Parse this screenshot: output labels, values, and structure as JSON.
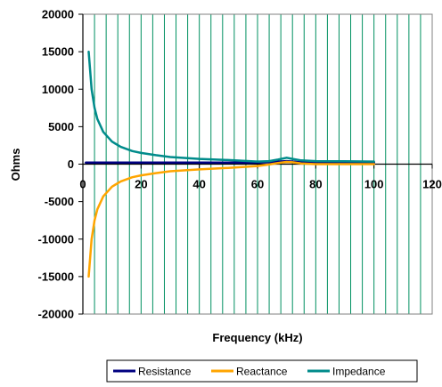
{
  "chart_data": {
    "type": "line",
    "title": "",
    "xlabel": "Frequency (kHz)",
    "ylabel": "Ohms",
    "xlim": [
      0,
      120
    ],
    "ylim": [
      -20000,
      20000
    ],
    "xticks": [
      0,
      20,
      40,
      60,
      80,
      100,
      120
    ],
    "yticks": [
      20000,
      15000,
      10000,
      5000,
      0,
      -5000,
      -10000,
      -15000,
      -20000
    ],
    "grid": "vertical",
    "legend_position": "bottom",
    "series": [
      {
        "name": "Resistance",
        "color": "#000080",
        "x": [
          1,
          2,
          5,
          10,
          20,
          30,
          40,
          50,
          60,
          64,
          67,
          70,
          72,
          75,
          80,
          90,
          100
        ],
        "y": [
          200,
          200,
          200,
          200,
          200,
          200,
          200,
          200,
          200,
          250,
          350,
          400,
          350,
          250,
          200,
          200,
          200
        ]
      },
      {
        "name": "Reactance",
        "color": "#ffa500",
        "x": [
          2,
          3,
          4,
          5,
          7,
          10,
          13,
          17,
          20,
          25,
          30,
          40,
          50,
          60,
          64,
          67,
          70,
          72,
          75,
          80,
          90,
          100
        ],
        "y": [
          -15000,
          -10000,
          -7500,
          -6000,
          -4300,
          -3000,
          -2300,
          -1750,
          -1500,
          -1200,
          -950,
          -700,
          -500,
          -250,
          -50,
          150,
          300,
          250,
          100,
          0,
          0,
          0
        ]
      },
      {
        "name": "Impedance",
        "color": "#008b8b",
        "x": [
          2,
          3,
          4,
          5,
          7,
          10,
          13,
          17,
          20,
          25,
          30,
          40,
          50,
          60,
          64,
          67,
          70,
          72,
          75,
          80,
          90,
          100
        ],
        "y": [
          15000,
          10000,
          7500,
          6000,
          4300,
          3000,
          2300,
          1750,
          1500,
          1200,
          950,
          700,
          550,
          350,
          400,
          600,
          850,
          700,
          500,
          400,
          380,
          350
        ]
      }
    ]
  }
}
